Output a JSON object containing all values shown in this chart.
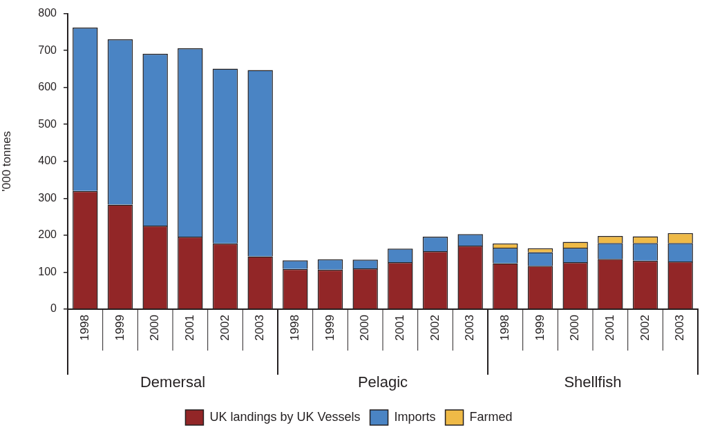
{
  "chart_data": {
    "type": "bar",
    "ylabel": "'000 tonnes",
    "categories": [
      "1998",
      "1999",
      "2000",
      "2001",
      "2002",
      "2003",
      "1998",
      "1999",
      "2000",
      "2001",
      "2002",
      "2003",
      "1998",
      "1999",
      "2000",
      "2001",
      "2002",
      "2003"
    ],
    "annotations": [
      "Demersal",
      "Pelagic",
      "Shellfish"
    ],
    "series": [
      {
        "name": "UK landings by UK Vessels",
        "color": "#922627",
        "values": [
          320,
          283,
          226,
          196,
          178,
          143,
          109,
          107,
          110,
          127,
          157,
          172,
          124,
          117,
          127,
          136,
          131,
          129
        ]
      },
      {
        "name": "Imports",
        "color": "#4a84c4",
        "values": [
          442,
          447,
          465,
          510,
          473,
          504,
          23,
          28,
          24,
          37,
          39,
          31,
          42,
          37,
          39,
          43,
          48,
          50
        ]
      },
      {
        "name": "Farmed",
        "color": "#efba47",
        "values": [
          null,
          null,
          null,
          null,
          null,
          null,
          null,
          null,
          null,
          null,
          null,
          null,
          12,
          11,
          16,
          19,
          18,
          27
        ]
      }
    ],
    "stacked": true,
    "ylim": [
      0,
      800
    ],
    "yticks": [
      0,
      100,
      200,
      300,
      400,
      500,
      600,
      700,
      800
    ],
    "grid": false,
    "legend": "bottom"
  }
}
